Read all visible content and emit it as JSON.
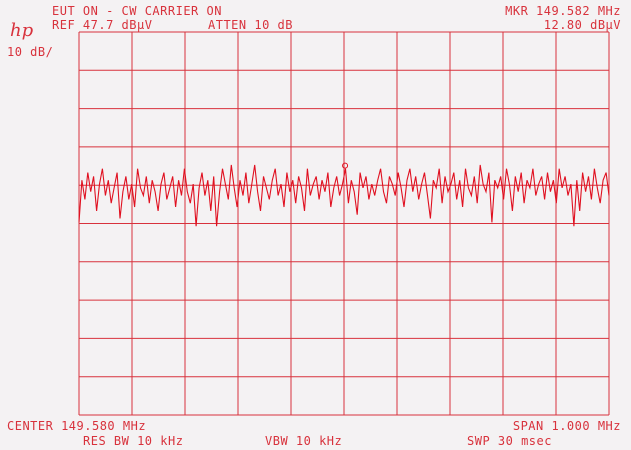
{
  "header": {
    "title": "EUT ON - CW CARRIER ON",
    "ref": "REF 47.7 dBµV",
    "atten": "ATTEN 10 dB",
    "marker_freq": "MKR 149.582 MHz",
    "marker_level": "12.80 dBµV",
    "scale": "10 dB/",
    "logo": "hp"
  },
  "footer": {
    "center": "CENTER 149.580 MHz",
    "span": "SPAN 1.000 MHz",
    "res_bw": "RES BW 10 kHz",
    "vbw": "VBW 10 kHz",
    "sweep": "SWP 30 msec"
  },
  "colors": {
    "trace": "#e01020",
    "grid": "#d8323c",
    "paper": "#f4f2f3"
  },
  "chart_data": {
    "type": "line",
    "xlabel": "",
    "ylabel": "",
    "xlim": [
      149.08,
      150.08
    ],
    "ylim": [
      -52.3,
      47.7
    ],
    "y_unit": "dBµV",
    "grid": true,
    "divisions": {
      "x": 10,
      "y": 10
    },
    "marker": {
      "x": 149.582,
      "y": 12.8
    },
    "values": [
      -2,
      9,
      4,
      11,
      6,
      10,
      1,
      8,
      12,
      5,
      9,
      3,
      7,
      11,
      -1,
      6,
      10,
      4,
      8,
      2,
      12,
      7,
      5,
      10,
      3,
      9,
      6,
      1,
      8,
      11,
      4,
      7,
      10,
      2,
      9,
      5,
      12,
      6,
      3,
      8,
      -3,
      7,
      11,
      5,
      9,
      1,
      10,
      -3,
      6,
      12,
      8,
      4,
      13,
      7,
      2,
      9,
      5,
      11,
      3,
      8,
      13,
      6,
      1,
      10,
      7,
      4,
      9,
      12,
      5,
      8,
      2,
      11,
      6,
      9,
      3,
      10,
      7,
      1,
      12,
      5,
      8,
      10,
      4,
      9,
      6,
      11,
      2,
      7,
      10,
      5,
      8,
      12,
      3,
      9,
      6,
      0,
      11,
      7,
      10,
      4,
      8,
      5,
      9,
      12,
      6,
      3,
      10,
      8,
      5,
      11,
      7,
      2,
      9,
      12,
      6,
      10,
      4,
      8,
      11,
      5,
      -1,
      9,
      7,
      12,
      3,
      10,
      6,
      8,
      11,
      4,
      9,
      2,
      12,
      7,
      5,
      10,
      3,
      13,
      8,
      6,
      11,
      -2,
      9,
      7,
      10,
      4,
      12,
      8,
      1,
      10,
      6,
      11,
      3,
      9,
      7,
      12,
      5,
      8,
      10,
      4,
      11,
      6,
      9,
      3,
      12,
      7,
      10,
      5,
      8,
      -3,
      9,
      1,
      11,
      6,
      10,
      4,
      12,
      7,
      3,
      9,
      11,
      5
    ]
  }
}
